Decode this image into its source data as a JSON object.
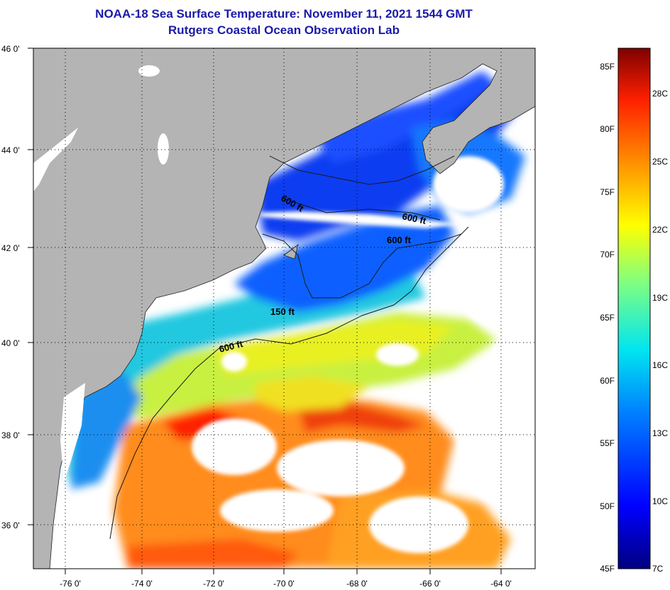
{
  "title": "NOAA-18 Sea Surface Temperature:  November 11, 2021 1544 GMT",
  "subtitle": "Rutgers Coastal Ocean Observation Lab",
  "map": {
    "lon_range": [
      -77,
      -62.5
    ],
    "lat_range": [
      35,
      46
    ],
    "lon_ticks": [
      "-76 0'",
      "-74 0'",
      "-72 0'",
      "-70 0'",
      "-68 0'",
      "-66 0'",
      "-64 0'"
    ],
    "lat_ticks": [
      "46 0'",
      "44 0'",
      "42 0'",
      "40 0'",
      "38 0'",
      "36 0'"
    ],
    "land_color": "#b4b4b4",
    "cloud_color": "#ffffff",
    "contour_labels": [
      "600 ft",
      "600 ft",
      "600 ft",
      "150 ft",
      "600 ft"
    ]
  },
  "colorbar": {
    "f_labels": [
      "85F",
      "80F",
      "75F",
      "70F",
      "65F",
      "60F",
      "55F",
      "50F",
      "45F"
    ],
    "c_labels": [
      "28C",
      "25C",
      "22C",
      "19C",
      "16C",
      "13C",
      "10C",
      "7C"
    ],
    "range_f": [
      45,
      86
    ]
  }
}
